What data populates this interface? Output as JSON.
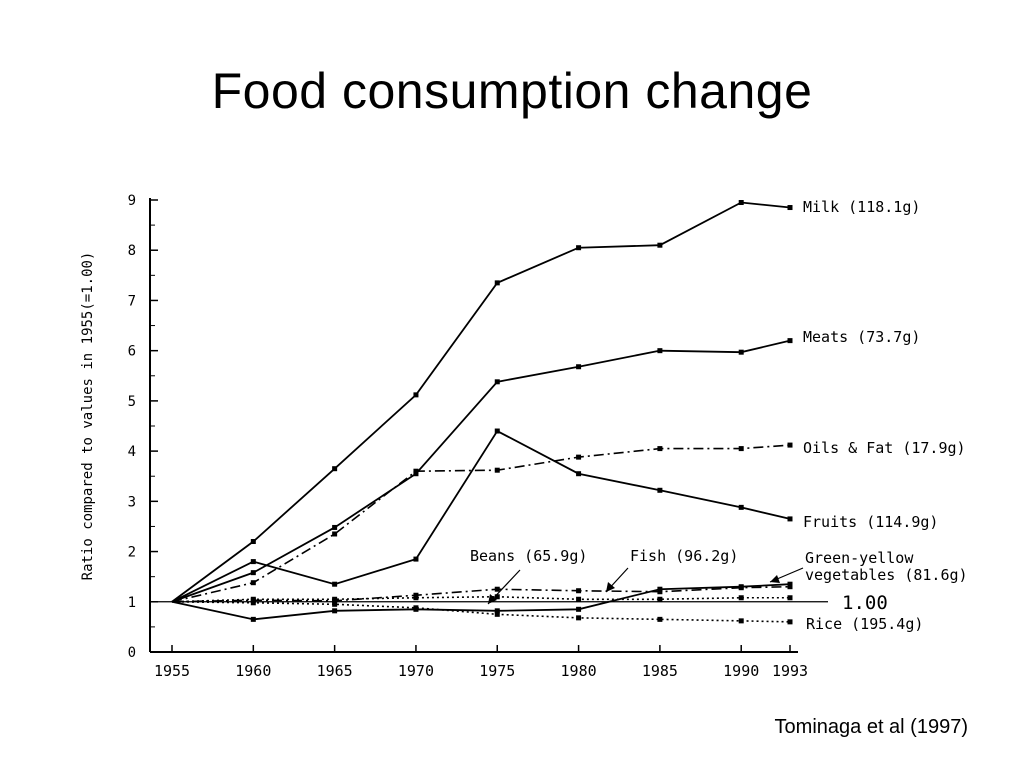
{
  "slide": {
    "title": "Food consumption change",
    "citation": "Tominaga et al (1997)"
  },
  "chart_data": {
    "type": "line",
    "title": "",
    "xlabel": "",
    "ylabel": "Ratio compared to values in 1955(=1.00)",
    "x": [
      1955,
      1960,
      1965,
      1970,
      1975,
      1980,
      1985,
      1990,
      1993
    ],
    "x_tick_labels": [
      "1955",
      "1960",
      "1965",
      "1970",
      "1975",
      "1980",
      "1985",
      "1990",
      "1993"
    ],
    "ylim": [
      0,
      9
    ],
    "y_ticks": [
      "0",
      "1",
      "2",
      "3",
      "4",
      "5",
      "6",
      "7",
      "8",
      "9"
    ],
    "grid": false,
    "reference_line": {
      "y": 1.0,
      "label": "1.00"
    },
    "series": [
      {
        "name": "Milk",
        "amount": "(118.1g)",
        "style": "solid",
        "values": [
          1.0,
          2.2,
          3.65,
          5.12,
          7.35,
          8.05,
          8.1,
          8.95,
          8.85
        ]
      },
      {
        "name": "Meats",
        "amount": "(73.7g)",
        "style": "solid",
        "values": [
          1.0,
          1.58,
          2.48,
          3.55,
          5.38,
          5.68,
          6.0,
          5.97,
          6.2
        ]
      },
      {
        "name": "Oils & Fat",
        "amount": "(17.9g)",
        "style": "dashdot",
        "values": [
          1.0,
          1.38,
          2.35,
          3.6,
          3.62,
          3.88,
          4.05,
          4.05,
          4.12
        ]
      },
      {
        "name": "Fruits",
        "amount": "(114.9g)",
        "style": "solid",
        "values": [
          1.0,
          1.8,
          1.35,
          1.85,
          4.4,
          3.55,
          3.22,
          2.88,
          2.65
        ]
      },
      {
        "name": "Beans",
        "amount": "(65.9g)",
        "style": "dashdot",
        "values": [
          1.0,
          1.03,
          1.02,
          1.13,
          1.25,
          1.22,
          1.2,
          1.28,
          1.3
        ]
      },
      {
        "name": "Fish",
        "amount": "(96.2g)",
        "style": "dotted",
        "values": [
          1.0,
          1.05,
          1.05,
          1.08,
          1.1,
          1.05,
          1.05,
          1.08,
          1.08
        ]
      },
      {
        "name": "Green-yellow vegetables",
        "amount": "(81.6g)",
        "style": "solid",
        "values": [
          1.0,
          0.65,
          0.82,
          0.85,
          0.82,
          0.85,
          1.25,
          1.3,
          1.35
        ]
      },
      {
        "name": "Rice",
        "amount": "(195.4g)",
        "style": "dotted",
        "values": [
          1.0,
          0.98,
          0.95,
          0.88,
          0.75,
          0.68,
          0.65,
          0.62,
          0.6
        ]
      }
    ],
    "labels": {
      "milk": "Milk  (118.1g)",
      "meats": "Meats (73.7g)",
      "oils": "Oils & Fat (17.9g)",
      "fruits": "Fruits  (114.9g)",
      "beans": "Beans (65.9g)",
      "fish": "Fish (96.2g)",
      "gyv_line1": "Green-yellow",
      "gyv_line2": "vegetables  (81.6g)",
      "rice": "Rice (195.4g)"
    }
  }
}
